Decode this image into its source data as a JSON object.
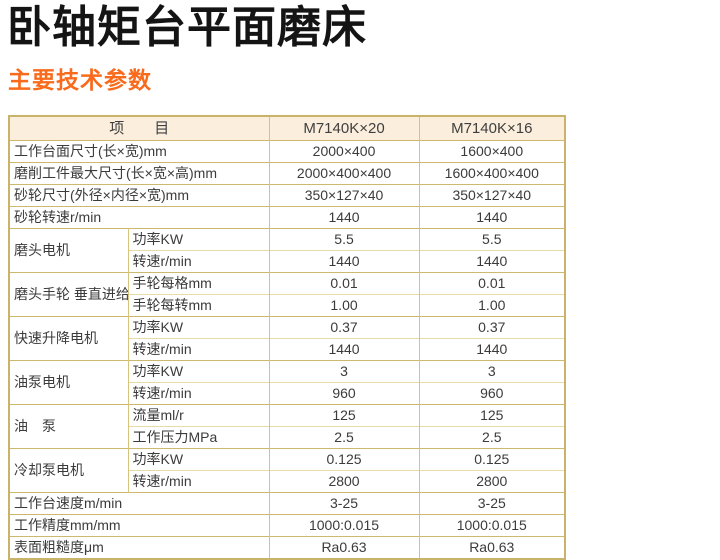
{
  "page": {
    "title": "卧轴矩台平面磨床",
    "subtitle": "主要技术参数"
  },
  "colors": {
    "subtitle_orange": "#f96b1c",
    "table_border_dark": "#c9b269",
    "table_border_light": "#e8dba6",
    "header_background": "#fbeedd",
    "text": "#3b3b3b"
  },
  "table": {
    "header": {
      "item": "项　　目",
      "model1": "M7140K×20",
      "model2": "M7140K×16"
    },
    "rows": [
      {
        "type": "simple",
        "label": "工作台面尺寸(长×宽)mm",
        "v1": "2000×400",
        "v2": "1600×400"
      },
      {
        "type": "simple",
        "label": "磨削工件最大尺寸(长×宽×高)mm",
        "v1": "2000×400×400",
        "v2": "1600×400×400"
      },
      {
        "type": "simple",
        "label": "砂轮尺寸(外径×内径×宽)mm",
        "v1": "350×127×40",
        "v2": "350×127×40"
      },
      {
        "type": "simple",
        "label": "砂轮转速r/min",
        "v1": "1440",
        "v2": "1440"
      },
      {
        "type": "group",
        "group": "磨头电机",
        "sub": "功率KW",
        "v1": "5.5",
        "v2": "5.5"
      },
      {
        "type": "sub",
        "sub": "转速r/min",
        "v1": "1440",
        "v2": "1440"
      },
      {
        "type": "group",
        "group": "磨头手轮\n垂直进给",
        "sub": "手轮每格mm",
        "v1": "0.01",
        "v2": "0.01"
      },
      {
        "type": "sub",
        "sub": "手轮每转mm",
        "v1": "1.00",
        "v2": "1.00"
      },
      {
        "type": "group",
        "group": "快速升降电机",
        "sub": "功率KW",
        "v1": "0.37",
        "v2": "0.37"
      },
      {
        "type": "sub",
        "sub": "转速r/min",
        "v1": "1440",
        "v2": "1440"
      },
      {
        "type": "group",
        "group": "油泵电机",
        "sub": "功率KW",
        "v1": "3",
        "v2": "3"
      },
      {
        "type": "sub",
        "sub": "转速r/min",
        "v1": "960",
        "v2": "960"
      },
      {
        "type": "group",
        "group": "油　泵",
        "sub": "流量ml/r",
        "v1": "125",
        "v2": "125"
      },
      {
        "type": "sub",
        "sub": "工作压力MPa",
        "v1": "2.5",
        "v2": "2.5"
      },
      {
        "type": "group",
        "group": "冷却泵电机",
        "sub": "功率KW",
        "v1": "0.125",
        "v2": "0.125"
      },
      {
        "type": "sub",
        "sub": "转速r/min",
        "v1": "2800",
        "v2": "2800"
      },
      {
        "type": "simple",
        "label": "工作台速度m/min",
        "v1": "3-25",
        "v2": "3-25"
      },
      {
        "type": "simple",
        "label": "工作精度mm/mm",
        "v1": "1000:0.015",
        "v2": "1000:0.015"
      },
      {
        "type": "simple",
        "label": "表面粗糙度μm",
        "v1": "Ra0.63",
        "v2": "Ra0.63"
      }
    ]
  }
}
